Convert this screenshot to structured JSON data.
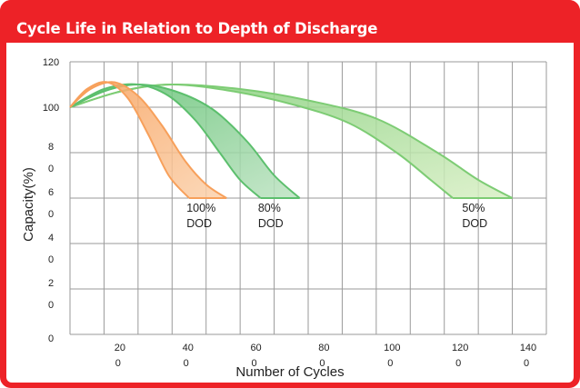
{
  "title": "Cycle Life in Relation to Depth of Discharge",
  "chart_data": {
    "type": "line",
    "title": "Cycle Life in Relation to Depth of Discharge",
    "xlabel": "Number of Cycles",
    "ylabel": "Capacity(%)",
    "xlim": [
      0,
      1400
    ],
    "ylim": [
      0,
      120
    ],
    "x_ticks": [
      {
        "value": 200,
        "line1": "20",
        "line2": "0"
      },
      {
        "value": 400,
        "line1": "40",
        "line2": "0"
      },
      {
        "value": 600,
        "line1": "60",
        "line2": "0"
      },
      {
        "value": 800,
        "line1": "80",
        "line2": "0"
      },
      {
        "value": 1000,
        "line1": "100",
        "line2": "0"
      },
      {
        "value": 1200,
        "line1": "120",
        "line2": "0"
      },
      {
        "value": 1400,
        "line1": "140",
        "line2": "0"
      }
    ],
    "y_ticks": [
      {
        "value": 0,
        "line1": "0",
        "line2": ""
      },
      {
        "value": 20,
        "line1": "2",
        "line2": "0"
      },
      {
        "value": 40,
        "line1": "4",
        "line2": "0"
      },
      {
        "value": 60,
        "line1": "6",
        "line2": "0"
      },
      {
        "value": 80,
        "line1": "8",
        "line2": "0"
      },
      {
        "value": 100,
        "line1": "100",
        "line2": ""
      },
      {
        "value": 120,
        "line1": "120",
        "line2": ""
      }
    ],
    "grid": true,
    "series": [
      {
        "color": "#f7a05b",
        "fill_color": "#fbd2ad",
        "label_line1": "100%",
        "label_line2": "DOD",
        "upper": [
          [
            0,
            100
          ],
          [
            60,
            108
          ],
          [
            130,
            111
          ],
          [
            200,
            105
          ],
          [
            270,
            92
          ],
          [
            340,
            76
          ],
          [
            400,
            66
          ],
          [
            460,
            60
          ]
        ],
        "lower": [
          [
            0,
            100
          ],
          [
            50,
            108
          ],
          [
            110,
            111
          ],
          [
            170,
            104
          ],
          [
            230,
            88
          ],
          [
            290,
            70
          ],
          [
            350,
            60
          ]
        ]
      },
      {
        "color": "#5cbf6d",
        "fill_color": "#bde3c2",
        "label_line1": "80%",
        "label_line2": "DOD",
        "upper": [
          [
            0,
            100
          ],
          [
            100,
            107
          ],
          [
            200,
            110
          ],
          [
            310,
            107
          ],
          [
            420,
            99
          ],
          [
            520,
            85
          ],
          [
            600,
            70
          ],
          [
            675,
            60
          ]
        ],
        "lower": [
          [
            0,
            100
          ],
          [
            100,
            108
          ],
          [
            200,
            110
          ],
          [
            290,
            105
          ],
          [
            370,
            94
          ],
          [
            440,
            80
          ],
          [
            500,
            68
          ],
          [
            560,
            60
          ]
        ]
      },
      {
        "color": "#7dcc74",
        "fill_color": "#d8efc4",
        "label_line1": "50%",
        "label_line2": "DOD",
        "upper": [
          [
            0,
            100
          ],
          [
            150,
            107
          ],
          [
            300,
            110
          ],
          [
            500,
            108
          ],
          [
            700,
            103
          ],
          [
            900,
            95
          ],
          [
            1080,
            80
          ],
          [
            1200,
            68
          ],
          [
            1300,
            60
          ]
        ],
        "lower": [
          [
            0,
            100
          ],
          [
            150,
            107
          ],
          [
            300,
            110
          ],
          [
            480,
            107
          ],
          [
            660,
            101
          ],
          [
            820,
            93
          ],
          [
            960,
            80
          ],
          [
            1060,
            68
          ],
          [
            1125,
            60
          ]
        ]
      }
    ],
    "dod_labels": [
      {
        "x": 380,
        "line1": "100%",
        "line2": "DOD"
      },
      {
        "x": 590,
        "line1": "80%",
        "line2": "DOD"
      },
      {
        "x": 1190,
        "line1": "50%",
        "line2": "DOD"
      }
    ]
  }
}
